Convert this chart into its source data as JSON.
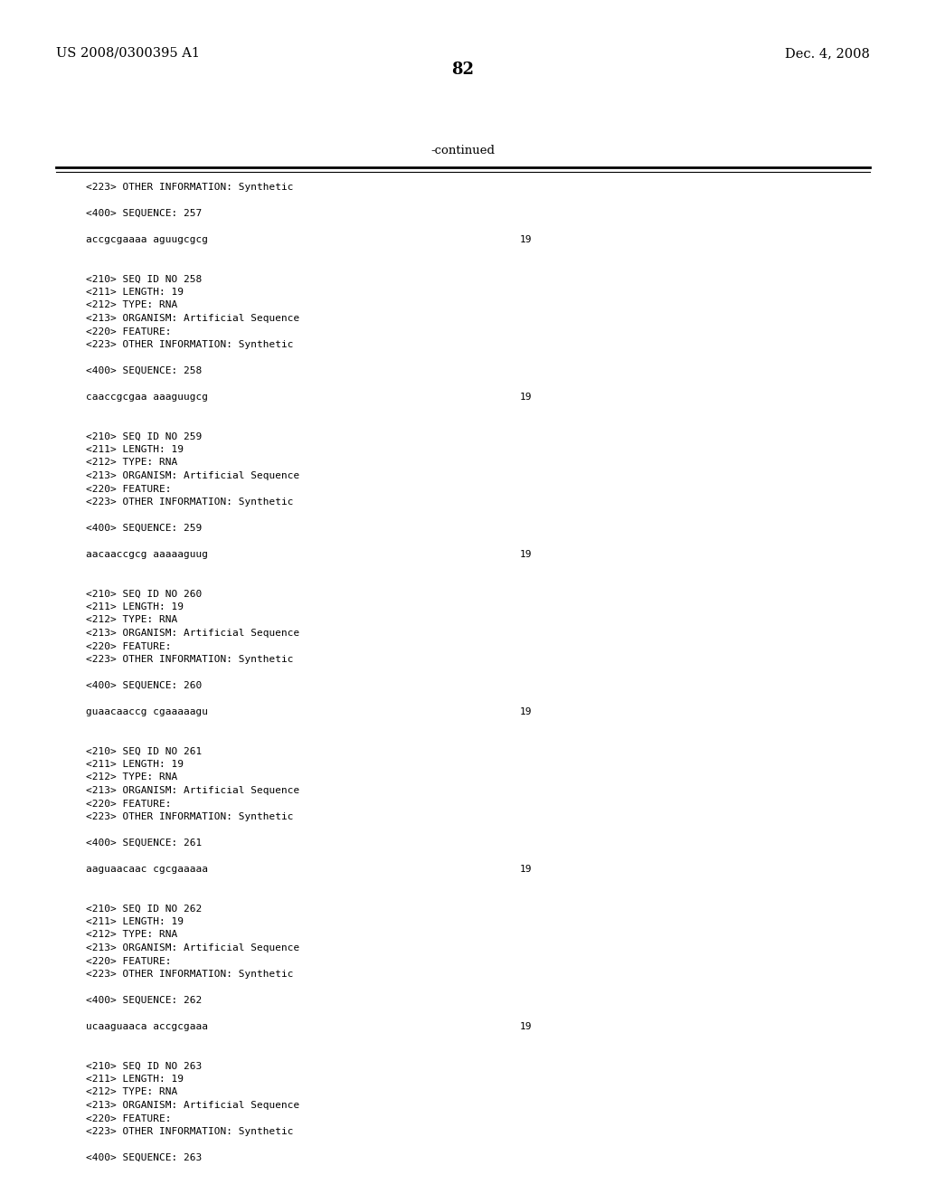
{
  "bg_color": "#ffffff",
  "top_left": "US 2008/0300395 A1",
  "top_right": "Dec. 4, 2008",
  "page_number": "82",
  "continued_label": "-continued",
  "mono_fontsize": 8.0,
  "header_fontsize": 10.5,
  "page_num_fontsize": 13,
  "lines": [
    {
      "text": "<223> OTHER INFORMATION: Synthetic",
      "indent": true,
      "seq_num": null
    },
    {
      "text": "",
      "indent": false,
      "seq_num": null
    },
    {
      "text": "<400> SEQUENCE: 257",
      "indent": true,
      "seq_num": null
    },
    {
      "text": "",
      "indent": false,
      "seq_num": null
    },
    {
      "text": "accgcgaaaa aguugcgcg",
      "indent": true,
      "seq_num": "19"
    },
    {
      "text": "",
      "indent": false,
      "seq_num": null
    },
    {
      "text": "",
      "indent": false,
      "seq_num": null
    },
    {
      "text": "<210> SEQ ID NO 258",
      "indent": true,
      "seq_num": null
    },
    {
      "text": "<211> LENGTH: 19",
      "indent": true,
      "seq_num": null
    },
    {
      "text": "<212> TYPE: RNA",
      "indent": true,
      "seq_num": null
    },
    {
      "text": "<213> ORGANISM: Artificial Sequence",
      "indent": true,
      "seq_num": null
    },
    {
      "text": "<220> FEATURE:",
      "indent": true,
      "seq_num": null
    },
    {
      "text": "<223> OTHER INFORMATION: Synthetic",
      "indent": true,
      "seq_num": null
    },
    {
      "text": "",
      "indent": false,
      "seq_num": null
    },
    {
      "text": "<400> SEQUENCE: 258",
      "indent": true,
      "seq_num": null
    },
    {
      "text": "",
      "indent": false,
      "seq_num": null
    },
    {
      "text": "caaccgcgaa aaaguugcg",
      "indent": true,
      "seq_num": "19"
    },
    {
      "text": "",
      "indent": false,
      "seq_num": null
    },
    {
      "text": "",
      "indent": false,
      "seq_num": null
    },
    {
      "text": "<210> SEQ ID NO 259",
      "indent": true,
      "seq_num": null
    },
    {
      "text": "<211> LENGTH: 19",
      "indent": true,
      "seq_num": null
    },
    {
      "text": "<212> TYPE: RNA",
      "indent": true,
      "seq_num": null
    },
    {
      "text": "<213> ORGANISM: Artificial Sequence",
      "indent": true,
      "seq_num": null
    },
    {
      "text": "<220> FEATURE:",
      "indent": true,
      "seq_num": null
    },
    {
      "text": "<223> OTHER INFORMATION: Synthetic",
      "indent": true,
      "seq_num": null
    },
    {
      "text": "",
      "indent": false,
      "seq_num": null
    },
    {
      "text": "<400> SEQUENCE: 259",
      "indent": true,
      "seq_num": null
    },
    {
      "text": "",
      "indent": false,
      "seq_num": null
    },
    {
      "text": "aacaaccgcg aaaaaguug",
      "indent": true,
      "seq_num": "19"
    },
    {
      "text": "",
      "indent": false,
      "seq_num": null
    },
    {
      "text": "",
      "indent": false,
      "seq_num": null
    },
    {
      "text": "<210> SEQ ID NO 260",
      "indent": true,
      "seq_num": null
    },
    {
      "text": "<211> LENGTH: 19",
      "indent": true,
      "seq_num": null
    },
    {
      "text": "<212> TYPE: RNA",
      "indent": true,
      "seq_num": null
    },
    {
      "text": "<213> ORGANISM: Artificial Sequence",
      "indent": true,
      "seq_num": null
    },
    {
      "text": "<220> FEATURE:",
      "indent": true,
      "seq_num": null
    },
    {
      "text": "<223> OTHER INFORMATION: Synthetic",
      "indent": true,
      "seq_num": null
    },
    {
      "text": "",
      "indent": false,
      "seq_num": null
    },
    {
      "text": "<400> SEQUENCE: 260",
      "indent": true,
      "seq_num": null
    },
    {
      "text": "",
      "indent": false,
      "seq_num": null
    },
    {
      "text": "guaacaaccg cgaaaaagu",
      "indent": true,
      "seq_num": "19"
    },
    {
      "text": "",
      "indent": false,
      "seq_num": null
    },
    {
      "text": "",
      "indent": false,
      "seq_num": null
    },
    {
      "text": "<210> SEQ ID NO 261",
      "indent": true,
      "seq_num": null
    },
    {
      "text": "<211> LENGTH: 19",
      "indent": true,
      "seq_num": null
    },
    {
      "text": "<212> TYPE: RNA",
      "indent": true,
      "seq_num": null
    },
    {
      "text": "<213> ORGANISM: Artificial Sequence",
      "indent": true,
      "seq_num": null
    },
    {
      "text": "<220> FEATURE:",
      "indent": true,
      "seq_num": null
    },
    {
      "text": "<223> OTHER INFORMATION: Synthetic",
      "indent": true,
      "seq_num": null
    },
    {
      "text": "",
      "indent": false,
      "seq_num": null
    },
    {
      "text": "<400> SEQUENCE: 261",
      "indent": true,
      "seq_num": null
    },
    {
      "text": "",
      "indent": false,
      "seq_num": null
    },
    {
      "text": "aaguaacaac cgcgaaaaa",
      "indent": true,
      "seq_num": "19"
    },
    {
      "text": "",
      "indent": false,
      "seq_num": null
    },
    {
      "text": "",
      "indent": false,
      "seq_num": null
    },
    {
      "text": "<210> SEQ ID NO 262",
      "indent": true,
      "seq_num": null
    },
    {
      "text": "<211> LENGTH: 19",
      "indent": true,
      "seq_num": null
    },
    {
      "text": "<212> TYPE: RNA",
      "indent": true,
      "seq_num": null
    },
    {
      "text": "<213> ORGANISM: Artificial Sequence",
      "indent": true,
      "seq_num": null
    },
    {
      "text": "<220> FEATURE:",
      "indent": true,
      "seq_num": null
    },
    {
      "text": "<223> OTHER INFORMATION: Synthetic",
      "indent": true,
      "seq_num": null
    },
    {
      "text": "",
      "indent": false,
      "seq_num": null
    },
    {
      "text": "<400> SEQUENCE: 262",
      "indent": true,
      "seq_num": null
    },
    {
      "text": "",
      "indent": false,
      "seq_num": null
    },
    {
      "text": "ucaaguaaca accgcgaaa",
      "indent": true,
      "seq_num": "19"
    },
    {
      "text": "",
      "indent": false,
      "seq_num": null
    },
    {
      "text": "",
      "indent": false,
      "seq_num": null
    },
    {
      "text": "<210> SEQ ID NO 263",
      "indent": true,
      "seq_num": null
    },
    {
      "text": "<211> LENGTH: 19",
      "indent": true,
      "seq_num": null
    },
    {
      "text": "<212> TYPE: RNA",
      "indent": true,
      "seq_num": null
    },
    {
      "text": "<213> ORGANISM: Artificial Sequence",
      "indent": true,
      "seq_num": null
    },
    {
      "text": "<220> FEATURE:",
      "indent": true,
      "seq_num": null
    },
    {
      "text": "<223> OTHER INFORMATION: Synthetic",
      "indent": true,
      "seq_num": null
    },
    {
      "text": "",
      "indent": false,
      "seq_num": null
    },
    {
      "text": "<400> SEQUENCE: 263",
      "indent": true,
      "seq_num": null
    }
  ]
}
